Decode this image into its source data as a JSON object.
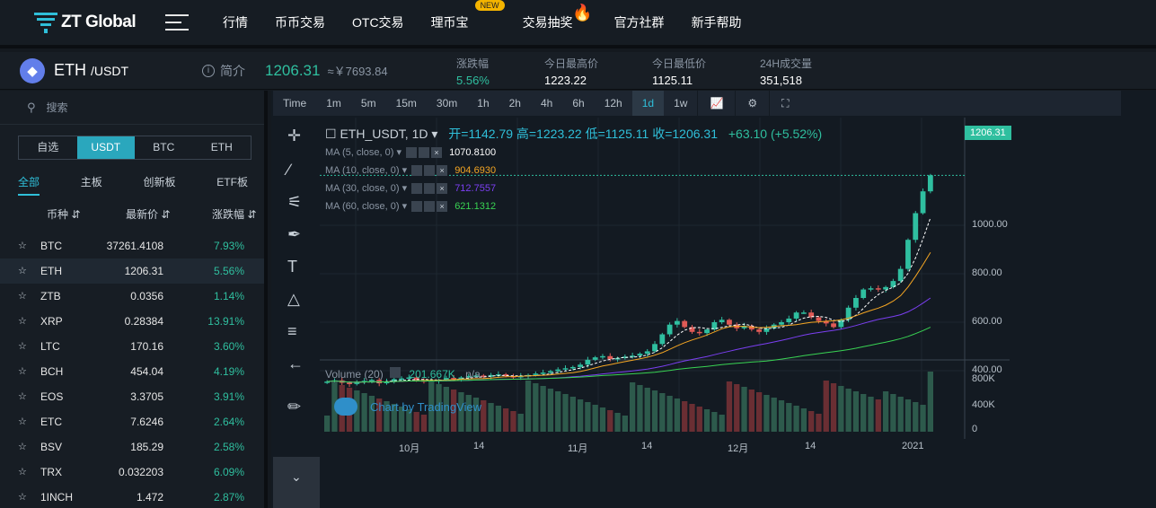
{
  "brand": {
    "logo_text": "ZT Global"
  },
  "nav": {
    "items": [
      "行情",
      "币币交易",
      "OTC交易",
      "理币宝",
      "交易抽奖",
      "官方社群",
      "新手帮助"
    ],
    "new_badge": "NEW"
  },
  "ticker": {
    "base": "ETH",
    "quote": "/USDT",
    "intro": "简介",
    "last_price": "1206.31",
    "cny_price": "≈￥7693.84",
    "stats": [
      {
        "label": "涨跌幅",
        "value": "5.56%"
      },
      {
        "label": "今日最高价",
        "value": "1223.22"
      },
      {
        "label": "今日最低价",
        "value": "1125.11"
      },
      {
        "label": "24H成交量",
        "value": "351,518"
      }
    ]
  },
  "sidebar": {
    "search_placeholder": "搜索",
    "market_tabs": [
      "自选",
      "USDT",
      "BTC",
      "ETH"
    ],
    "active_market_tab": "USDT",
    "categories": [
      "全部",
      "主板",
      "创新板",
      "ETF板"
    ],
    "columns": [
      "币种",
      "最新价",
      "涨跌幅"
    ],
    "rows": [
      {
        "symbol": "BTC",
        "price": "37261.4108",
        "change": "7.93%"
      },
      {
        "symbol": "ETH",
        "price": "1206.31",
        "change": "5.56%"
      },
      {
        "symbol": "ZTB",
        "price": "0.0356",
        "change": "1.14%"
      },
      {
        "symbol": "XRP",
        "price": "0.28384",
        "change": "13.91%"
      },
      {
        "symbol": "LTC",
        "price": "170.16",
        "change": "3.60%"
      },
      {
        "symbol": "BCH",
        "price": "454.04",
        "change": "4.19%"
      },
      {
        "symbol": "EOS",
        "price": "3.3705",
        "change": "3.91%"
      },
      {
        "symbol": "ETC",
        "price": "7.6246",
        "change": "2.64%"
      },
      {
        "symbol": "BSV",
        "price": "185.29",
        "change": "2.58%"
      },
      {
        "symbol": "TRX",
        "price": "0.032203",
        "change": "6.09%"
      },
      {
        "symbol": "1INCH",
        "price": "1.472",
        "change": "2.87%"
      }
    ]
  },
  "chart": {
    "timeframes": [
      "Time",
      "1m",
      "5m",
      "15m",
      "30m",
      "1h",
      "2h",
      "4h",
      "6h",
      "12h",
      "1d",
      "1w"
    ],
    "active_timeframe": "1d",
    "symbol_label": "ETH_USDT, 1D",
    "ohlc": "开=1142.79  高=1223.22  低=1125.11  收=1206.31",
    "change": "+63.10 (+5.52%)",
    "ma_lines": [
      {
        "label": "MA (5, close, 0)",
        "value": "1070.8100",
        "color": "#ffffff"
      },
      {
        "label": "MA (10, close, 0)",
        "value": "904.6930",
        "color": "#f5a623"
      },
      {
        "label": "MA (30, close, 0)",
        "value": "712.7557",
        "color": "#7b3ff2"
      },
      {
        "label": "MA (60, close, 0)",
        "value": "621.1312",
        "color": "#39d353"
      }
    ],
    "volume_label": "Volume (20)",
    "volume_value": "201.667K",
    "volume_na": "n/a",
    "watermark": "Chart by TradingView",
    "price_tag": "1206.31",
    "y_labels": [
      "1000.00",
      "800.00",
      "600.00",
      "400.00"
    ],
    "vol_labels": [
      "800K",
      "400K",
      "0"
    ],
    "x_labels": [
      "10月",
      "14",
      "11月",
      "14",
      "12月",
      "14",
      "2021"
    ]
  },
  "chart_data": {
    "type": "candlestick",
    "title": "ETH_USDT, 1D",
    "last": {
      "open": 1142.79,
      "high": 1223.22,
      "low": 1125.11,
      "close": 1206.31
    },
    "y_ticks": [
      400,
      600,
      800,
      1000
    ],
    "volume_ticks": [
      "0",
      "400K",
      "800K"
    ],
    "x_ticks": [
      "10月",
      "14",
      "11月",
      "14",
      "12月",
      "14",
      "2021"
    ],
    "series": [
      {
        "name": "MA (5, close, 0)",
        "last": 1070.81
      },
      {
        "name": "MA (10, close, 0)",
        "last": 904.693
      },
      {
        "name": "MA (30, close, 0)",
        "last": 712.7557
      },
      {
        "name": "MA (60, close, 0)",
        "last": 621.1312
      }
    ],
    "closes": [
      355,
      360,
      350,
      345,
      352,
      358,
      362,
      348,
      355,
      365,
      368,
      372,
      360,
      355,
      358,
      362,
      370,
      365,
      372,
      378,
      380,
      375,
      382,
      385,
      378,
      372,
      378,
      382,
      388,
      392,
      398,
      405,
      410,
      415,
      425,
      445,
      455,
      460,
      448,
      452,
      458,
      462,
      470,
      480,
      510,
      550,
      590,
      605,
      580,
      560,
      555,
      570,
      600,
      610,
      590,
      575,
      585,
      570,
      560,
      575,
      590,
      600,
      615,
      640,
      640,
      620,
      605,
      595,
      580,
      610,
      660,
      700,
      735,
      740,
      735,
      745,
      770,
      820,
      940,
      1050,
      1140,
      1206
    ]
  }
}
